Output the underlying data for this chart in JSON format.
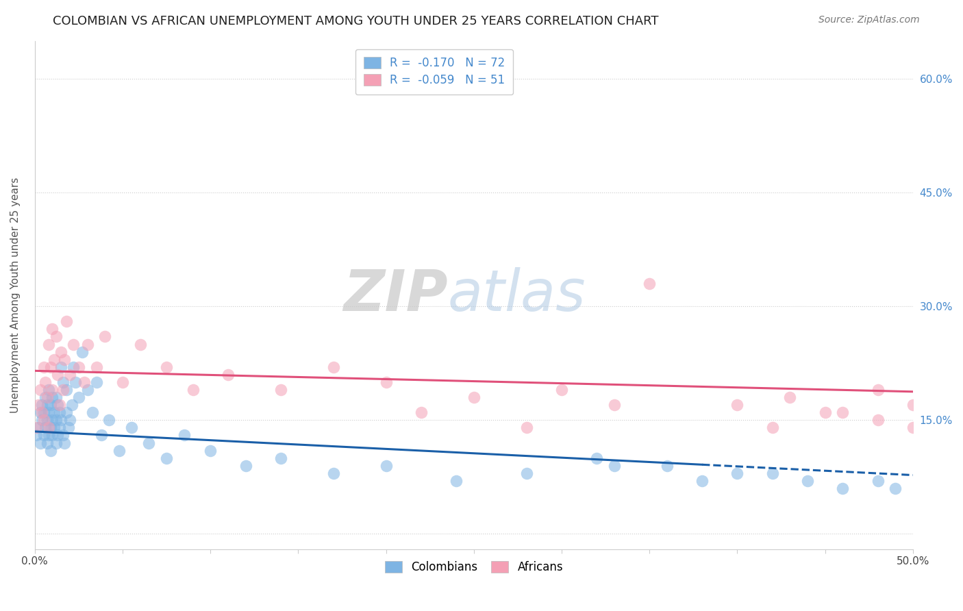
{
  "title": "COLOMBIAN VS AFRICAN UNEMPLOYMENT AMONG YOUTH UNDER 25 YEARS CORRELATION CHART",
  "source": "Source: ZipAtlas.com",
  "ylabel": "Unemployment Among Youth under 25 years",
  "xlim": [
    0.0,
    0.5
  ],
  "ylim": [
    -0.02,
    0.65
  ],
  "xticks": [
    0.0,
    0.05,
    0.1,
    0.15,
    0.2,
    0.25,
    0.3,
    0.35,
    0.4,
    0.45,
    0.5
  ],
  "xtick_labels": [
    "0.0%",
    "",
    "",
    "",
    "",
    "",
    "",
    "",
    "",
    "",
    "50.0%"
  ],
  "ytick_positions": [
    0.0,
    0.15,
    0.3,
    0.45,
    0.6
  ],
  "ytick_labels": [
    "",
    "15.0%",
    "30.0%",
    "45.0%",
    "60.0%"
  ],
  "legend_colombians": "R =  -0.170   N = 72",
  "legend_africans": "R =  -0.059   N = 51",
  "colombian_color": "#7EB4E3",
  "african_color": "#F4A0B5",
  "trend_colombian_color": "#1A5FA8",
  "trend_african_color": "#E0507A",
  "background_color": "#FFFFFF",
  "grid_color": "#CCCCCC",
  "watermark_zip": "ZIP",
  "watermark_atlas": "atlas",
  "title_fontsize": 13,
  "axis_label_color": "#4488CC",
  "colombian_x": [
    0.001,
    0.002,
    0.003,
    0.003,
    0.004,
    0.004,
    0.005,
    0.005,
    0.006,
    0.006,
    0.007,
    0.007,
    0.007,
    0.008,
    0.008,
    0.008,
    0.009,
    0.009,
    0.009,
    0.01,
    0.01,
    0.01,
    0.011,
    0.011,
    0.012,
    0.012,
    0.012,
    0.013,
    0.013,
    0.014,
    0.014,
    0.015,
    0.015,
    0.016,
    0.016,
    0.017,
    0.018,
    0.018,
    0.019,
    0.02,
    0.021,
    0.022,
    0.023,
    0.025,
    0.027,
    0.03,
    0.033,
    0.035,
    0.038,
    0.042,
    0.048,
    0.055,
    0.065,
    0.075,
    0.085,
    0.1,
    0.12,
    0.14,
    0.17,
    0.2,
    0.24,
    0.28,
    0.33,
    0.38,
    0.42,
    0.46,
    0.48,
    0.49,
    0.32,
    0.36,
    0.4,
    0.44
  ],
  "colombian_y": [
    0.13,
    0.14,
    0.12,
    0.16,
    0.15,
    0.17,
    0.13,
    0.16,
    0.14,
    0.18,
    0.12,
    0.15,
    0.17,
    0.13,
    0.16,
    0.19,
    0.14,
    0.17,
    0.11,
    0.15,
    0.13,
    0.18,
    0.14,
    0.16,
    0.12,
    0.15,
    0.18,
    0.13,
    0.17,
    0.14,
    0.16,
    0.15,
    0.22,
    0.13,
    0.2,
    0.12,
    0.16,
    0.19,
    0.14,
    0.15,
    0.17,
    0.22,
    0.2,
    0.18,
    0.24,
    0.19,
    0.16,
    0.2,
    0.13,
    0.15,
    0.11,
    0.14,
    0.12,
    0.1,
    0.13,
    0.11,
    0.09,
    0.1,
    0.08,
    0.09,
    0.07,
    0.08,
    0.09,
    0.07,
    0.08,
    0.06,
    0.07,
    0.06,
    0.1,
    0.09,
    0.08,
    0.07
  ],
  "african_x": [
    0.001,
    0.002,
    0.003,
    0.004,
    0.005,
    0.005,
    0.006,
    0.007,
    0.008,
    0.008,
    0.009,
    0.01,
    0.01,
    0.011,
    0.012,
    0.013,
    0.014,
    0.015,
    0.016,
    0.017,
    0.018,
    0.02,
    0.022,
    0.025,
    0.028,
    0.03,
    0.035,
    0.04,
    0.05,
    0.06,
    0.075,
    0.09,
    0.11,
    0.14,
    0.17,
    0.2,
    0.25,
    0.3,
    0.35,
    0.4,
    0.43,
    0.46,
    0.48,
    0.5,
    0.5,
    0.42,
    0.45,
    0.48,
    0.33,
    0.28,
    0.22
  ],
  "african_y": [
    0.14,
    0.17,
    0.19,
    0.16,
    0.22,
    0.15,
    0.2,
    0.18,
    0.25,
    0.14,
    0.22,
    0.19,
    0.27,
    0.23,
    0.26,
    0.21,
    0.17,
    0.24,
    0.19,
    0.23,
    0.28,
    0.21,
    0.25,
    0.22,
    0.2,
    0.25,
    0.22,
    0.26,
    0.2,
    0.25,
    0.22,
    0.19,
    0.21,
    0.19,
    0.22,
    0.2,
    0.18,
    0.19,
    0.33,
    0.17,
    0.18,
    0.16,
    0.19,
    0.14,
    0.17,
    0.14,
    0.16,
    0.15,
    0.17,
    0.14,
    0.16
  ]
}
